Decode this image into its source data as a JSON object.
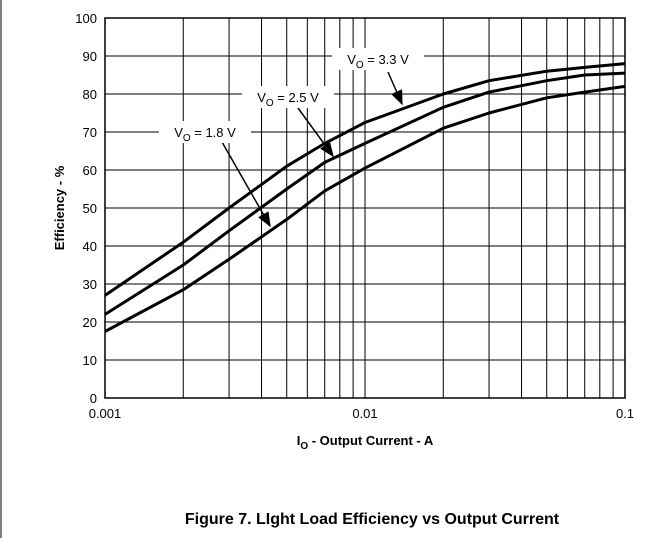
{
  "chart_data": {
    "type": "line",
    "title": "Figure 7. LIght Load Efficiency vs Output Current",
    "xlabel": [
      "I",
      "O",
      " - Output Current - A"
    ],
    "ylabel": "Efficiency - %",
    "xscale": "log",
    "xlim": [
      0.001,
      0.1
    ],
    "xticks": [
      0.001,
      0.01,
      0.1
    ],
    "xminor": [
      0.002,
      0.003,
      0.004,
      0.005,
      0.006,
      0.007,
      0.008,
      0.009,
      0.02,
      0.03,
      0.04,
      0.05,
      0.06,
      0.07,
      0.08,
      0.09
    ],
    "ylim": [
      0,
      100
    ],
    "yticks": [
      0,
      10,
      20,
      30,
      40,
      50,
      60,
      70,
      80,
      90,
      100
    ],
    "grid": true,
    "x": [
      0.001,
      0.002,
      0.003,
      0.005,
      0.007,
      0.01,
      0.02,
      0.03,
      0.05,
      0.07,
      0.1
    ],
    "series": [
      {
        "name": [
          "V",
          "O",
          " = 3.3 V"
        ],
        "color": "#000000",
        "values": [
          27,
          41,
          50,
          61,
          67,
          72.5,
          80,
          83.5,
          86,
          87,
          88
        ]
      },
      {
        "name": [
          "V",
          "O",
          " = 2.5 V"
        ],
        "color": "#000000",
        "values": [
          22,
          35,
          44,
          55,
          62,
          67,
          76.5,
          80.5,
          83.5,
          85,
          85.5
        ]
      },
      {
        "name": [
          "V",
          "O",
          " = 1.8 V"
        ],
        "color": "#000000",
        "values": [
          17.5,
          28.5,
          36.5,
          47,
          54.5,
          60.5,
          71,
          75,
          79,
          80.5,
          82
        ]
      }
    ]
  }
}
